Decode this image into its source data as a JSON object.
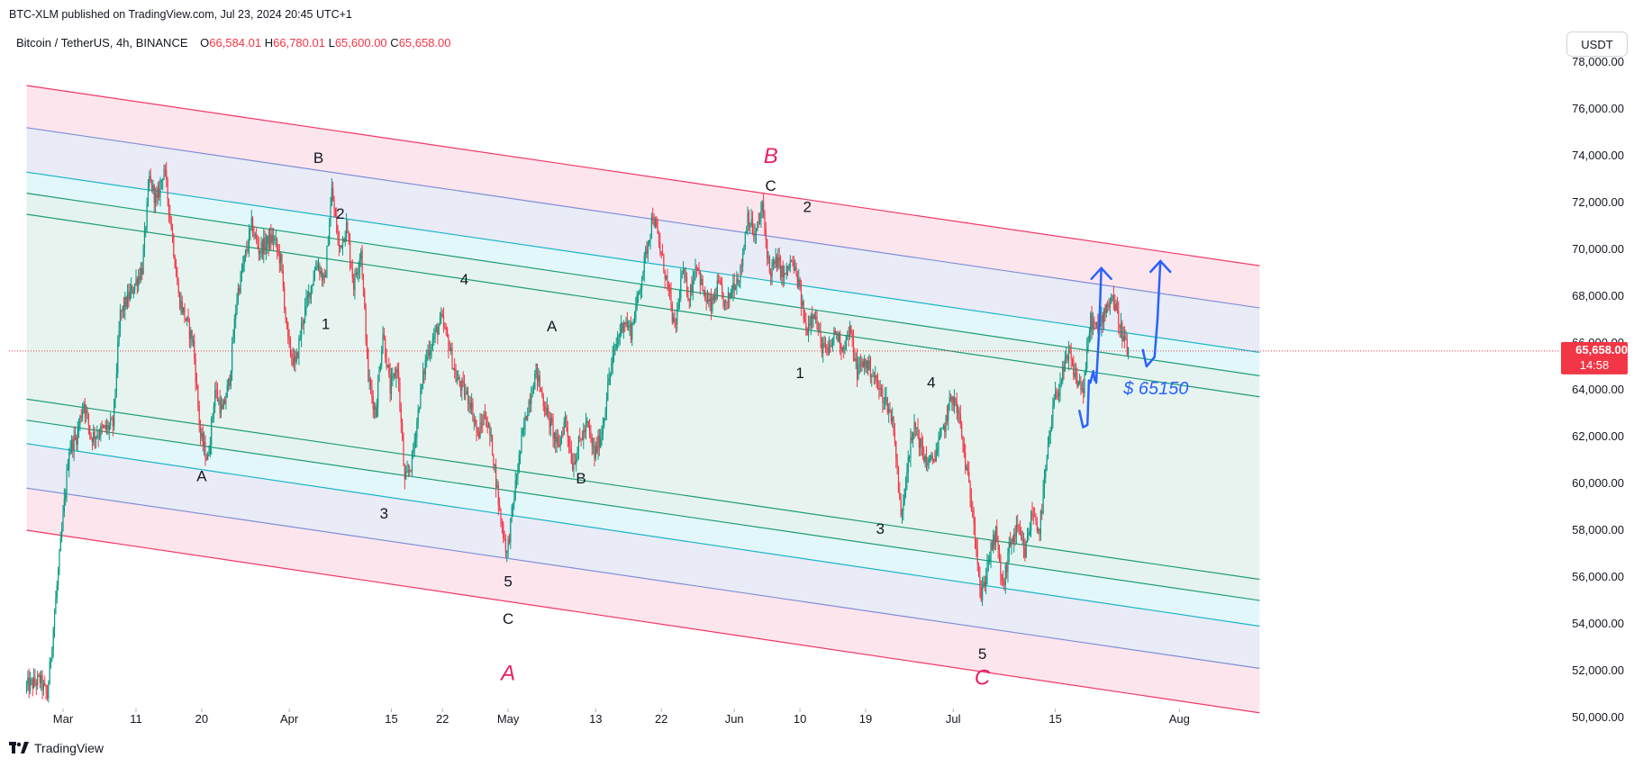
{
  "header": {
    "published": "BTC-XLM published on TradingView.com, Jul 23, 2024 20:45 UTC+1"
  },
  "symbol": {
    "name": "Bitcoin / TetherUS, 4h, BINANCE",
    "open_label": "O",
    "open": "66,584.01",
    "high_label": "H",
    "high": "66,780.01",
    "low_label": "L",
    "low": "65,600.00",
    "close_label": "C",
    "close": "65,658.00"
  },
  "currency_button": "USDT",
  "footer": {
    "brand": "TradingView"
  },
  "colors": {
    "up": "#089981",
    "down": "#f23645",
    "channel_red": "#f23665",
    "channel_blue": "#7e8fd6",
    "channel_cyan": "#19b5c8",
    "channel_green": "#1e9c74",
    "annotation": "#2962ff",
    "price_tag": "#f23645"
  },
  "chart_data": {
    "type": "candlestick",
    "symbol": "BTCUSDT",
    "interval": "4h",
    "ylim": [
      49500,
      79500
    ],
    "y_ticks": [
      "78,000.00",
      "76,000.00",
      "74,000.00",
      "72,000.00",
      "70,000.00",
      "68,000.00",
      "66,000.00",
      "64,000.00",
      "62,000.00",
      "60,000.00",
      "58,000.00",
      "56,000.00",
      "54,000.00",
      "52,000.00",
      "50,000.00"
    ],
    "x_ticks": [
      "Mar",
      "11",
      "20",
      "Apr",
      "15",
      "22",
      "May",
      "13",
      "22",
      "Jun",
      "10",
      "19",
      "Jul",
      "15",
      "Aug"
    ],
    "x_tick_days": [
      0,
      10,
      19,
      31,
      45,
      52,
      61,
      73,
      82,
      92,
      101,
      110,
      122,
      136,
      153
    ],
    "x_range_days": [
      -5,
      164
    ],
    "last_price": "65,658.00",
    "countdown": "14:58",
    "last_price_value": 65658,
    "anchors": [
      [
        -5,
        51300
      ],
      [
        -3,
        51600
      ],
      [
        -2,
        50900
      ],
      [
        1,
        61500
      ],
      [
        2,
        62000
      ],
      [
        3,
        63500
      ],
      [
        4,
        62000
      ],
      [
        7,
        62500
      ],
      [
        8,
        67200
      ],
      [
        11,
        69200
      ],
      [
        12,
        73000
      ],
      [
        13,
        72000
      ],
      [
        14,
        73500
      ],
      [
        15,
        71000
      ],
      [
        16,
        68000
      ],
      [
        18,
        66000
      ],
      [
        19,
        62000
      ],
      [
        20,
        61000
      ],
      [
        21,
        64000
      ],
      [
        22,
        63000
      ],
      [
        23,
        64500
      ],
      [
        24,
        68000
      ],
      [
        25,
        69500
      ],
      [
        26,
        71000
      ],
      [
        27,
        70000
      ],
      [
        29,
        70500
      ],
      [
        30,
        69500
      ],
      [
        31,
        66000
      ],
      [
        32,
        65000
      ],
      [
        33,
        67000
      ],
      [
        35,
        69500
      ],
      [
        36,
        68500
      ],
      [
        37,
        72500
      ],
      [
        38,
        70000
      ],
      [
        39,
        71000
      ],
      [
        40,
        68500
      ],
      [
        41,
        70000
      ],
      [
        42,
        64500
      ],
      [
        43,
        63000
      ],
      [
        44,
        66500
      ],
      [
        45,
        64000
      ],
      [
        46,
        65000
      ],
      [
        47,
        60000
      ],
      [
        48,
        61000
      ],
      [
        49,
        63500
      ],
      [
        50,
        65500
      ],
      [
        52,
        67000
      ],
      [
        53,
        66000
      ],
      [
        54,
        64500
      ],
      [
        56,
        63500
      ],
      [
        57,
        62000
      ],
      [
        58,
        63000
      ],
      [
        59,
        61500
      ],
      [
        60,
        58800
      ],
      [
        61,
        57000
      ],
      [
        62,
        59500
      ],
      [
        63,
        61800
      ],
      [
        64,
        63500
      ],
      [
        65,
        64800
      ],
      [
        66,
        63500
      ],
      [
        67,
        62500
      ],
      [
        68,
        61500
      ],
      [
        69,
        62800
      ],
      [
        70,
        60800
      ],
      [
        71,
        61800
      ],
      [
        72,
        62500
      ],
      [
        73,
        61200
      ],
      [
        74,
        62200
      ],
      [
        75,
        64500
      ],
      [
        76,
        66000
      ],
      [
        77,
        67000
      ],
      [
        78,
        66500
      ],
      [
        79,
        68000
      ],
      [
        81,
        71500
      ],
      [
        82,
        70000
      ],
      [
        83,
        68500
      ],
      [
        84,
        66500
      ],
      [
        85,
        69000
      ],
      [
        86,
        68000
      ],
      [
        87,
        69500
      ],
      [
        88,
        68000
      ],
      [
        89,
        67500
      ],
      [
        90,
        68500
      ],
      [
        91,
        67500
      ],
      [
        92,
        68500
      ],
      [
        93,
        69000
      ],
      [
        94,
        71500
      ],
      [
        95,
        70500
      ],
      [
        96,
        71800
      ],
      [
        97,
        69000
      ],
      [
        98,
        69500
      ],
      [
        99,
        68800
      ],
      [
        100,
        69500
      ],
      [
        101,
        68500
      ],
      [
        102,
        66500
      ],
      [
        103,
        67500
      ],
      [
        104,
        66000
      ],
      [
        105,
        65500
      ],
      [
        106,
        66500
      ],
      [
        107,
        65800
      ],
      [
        108,
        66500
      ],
      [
        109,
        64800
      ],
      [
        110,
        65200
      ],
      [
        111,
        64800
      ],
      [
        112,
        64000
      ],
      [
        113,
        63500
      ],
      [
        114,
        62500
      ],
      [
        115,
        58500
      ],
      [
        116,
        61200
      ],
      [
        117,
        62500
      ],
      [
        118,
        61200
      ],
      [
        119,
        60800
      ],
      [
        120,
        61500
      ],
      [
        121,
        62500
      ],
      [
        122,
        63800
      ],
      [
        123,
        62800
      ],
      [
        124,
        60500
      ],
      [
        125,
        58500
      ],
      [
        126,
        55000
      ],
      [
        127,
        56800
      ],
      [
        128,
        57800
      ],
      [
        129,
        55500
      ],
      [
        130,
        57500
      ],
      [
        131,
        58000
      ],
      [
        132,
        57000
      ],
      [
        133,
        58800
      ],
      [
        134,
        58000
      ],
      [
        135,
        61000
      ],
      [
        136,
        63500
      ],
      [
        137,
        64500
      ],
      [
        138,
        65500
      ],
      [
        139,
        64500
      ],
      [
        140,
        64000
      ],
      [
        141,
        67000
      ],
      [
        142,
        66500
      ],
      [
        143,
        67500
      ],
      [
        144,
        68000
      ],
      [
        145,
        66800
      ],
      [
        146,
        65658
      ]
    ],
    "channel_lines": [
      {
        "color_key": "channel_red",
        "x0": -5,
        "y0": 77000,
        "x1": 164,
        "y1": 69300
      },
      {
        "color_key": "channel_blue",
        "x0": -5,
        "y0": 75200,
        "x1": 164,
        "y1": 67500
      },
      {
        "color_key": "channel_cyan",
        "x0": -5,
        "y0": 73300,
        "x1": 164,
        "y1": 65600
      },
      {
        "color_key": "channel_green",
        "x0": -5,
        "y0": 72400,
        "x1": 164,
        "y1": 64600
      },
      {
        "color_key": "channel_green",
        "x0": -5,
        "y0": 71500,
        "x1": 164,
        "y1": 63700
      },
      {
        "color_key": "channel_green",
        "x0": -5,
        "y0": 63600,
        "x1": 164,
        "y1": 55900
      },
      {
        "color_key": "channel_green",
        "x0": -5,
        "y0": 62700,
        "x1": 164,
        "y1": 55000
      },
      {
        "color_key": "channel_cyan",
        "x0": -5,
        "y0": 61700,
        "x1": 164,
        "y1": 53900
      },
      {
        "color_key": "channel_blue",
        "x0": -5,
        "y0": 59800,
        "x1": 164,
        "y1": 52100
      },
      {
        "color_key": "channel_red",
        "x0": -5,
        "y0": 58000,
        "x1": 164,
        "y1": 50200
      }
    ],
    "wave_labels": [
      {
        "text": "B",
        "day": 35,
        "price": 73700
      },
      {
        "text": "2",
        "day": 38,
        "price": 71300
      },
      {
        "text": "1",
        "day": 36,
        "price": 66600
      },
      {
        "text": "4",
        "day": 55,
        "price": 68500
      },
      {
        "text": "A",
        "day": 19,
        "price": 60100
      },
      {
        "text": "3",
        "day": 44,
        "price": 58500
      },
      {
        "text": "A",
        "day": 67,
        "price": 66500
      },
      {
        "text": "B",
        "day": 71,
        "price": 60000
      },
      {
        "text": "5",
        "day": 61,
        "price": 55600
      },
      {
        "text": "C",
        "day": 61,
        "price": 54000
      },
      {
        "text": "C",
        "day": 97,
        "price": 72500
      },
      {
        "text": "2",
        "day": 102,
        "price": 71600
      },
      {
        "text": "1",
        "day": 101,
        "price": 64500
      },
      {
        "text": "4",
        "day": 119,
        "price": 64100
      },
      {
        "text": "3",
        "day": 112,
        "price": 57850
      },
      {
        "text": "5",
        "day": 126,
        "price": 52500
      }
    ],
    "major_labels": [
      {
        "text": "B",
        "day": 97,
        "price": 73700
      },
      {
        "text": "A",
        "day": 61,
        "price": 51600
      },
      {
        "text": "C",
        "day": 126,
        "price": 51400
      }
    ],
    "annotation_text": "$ 65150",
    "annotation_pos": {
      "day": 149.8,
      "price": 63800
    },
    "annotation_arrows": [
      {
        "points": [
          [
            139.3,
            63100
          ],
          [
            139.8,
            62400
          ],
          [
            140.4,
            62500
          ],
          [
            140.6,
            64400
          ]
        ]
      },
      {
        "points": [
          [
            140.8,
            64300
          ],
          [
            141.2,
            64800
          ],
          [
            141.4,
            64400
          ]
        ]
      },
      {
        "points": [
          [
            141.6,
            64300
          ],
          [
            142.0,
            66500
          ],
          [
            142.3,
            69200
          ]
        ],
        "head": true
      },
      {
        "points": [
          [
            148.0,
            65700
          ],
          [
            148.5,
            65000
          ],
          [
            149.6,
            65400
          ],
          [
            150.0,
            67000
          ],
          [
            150.4,
            69500
          ]
        ],
        "head": true
      }
    ]
  }
}
